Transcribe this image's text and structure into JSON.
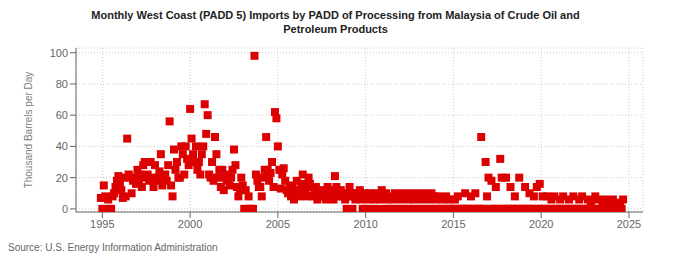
{
  "chart_data": {
    "type": "scatter",
    "title": "Monthly West Coast (PADD 5) Imports by PADD of Processing from Malaysia of Crude Oil and\nPetroleum Products",
    "ylabel": "Thousand Barrels per Day",
    "annotations": [
      "Source: U.S. Energy Information Administration"
    ],
    "color": "#dd0000",
    "marker": "square",
    "grid": true,
    "xlim": [
      1993.5,
      2025.8
    ],
    "ylim": [
      -2,
      103
    ],
    "xticks": [
      1995,
      2000,
      2005,
      2010,
      2015,
      2020,
      2025
    ],
    "yticks": [
      0,
      20,
      40,
      60,
      80,
      100
    ],
    "x": [
      1994.917,
      1995.0,
      1995.083,
      1995.167,
      1995.25,
      1995.333,
      1995.417,
      1995.5,
      1995.583,
      1995.667,
      1995.75,
      1995.833,
      1995.917,
      1996.0,
      1996.083,
      1996.167,
      1996.25,
      1996.333,
      1996.417,
      1996.5,
      1996.583,
      1996.667,
      1996.75,
      1996.833,
      1996.917,
      1997.0,
      1997.083,
      1997.167,
      1997.25,
      1997.333,
      1997.417,
      1997.5,
      1997.583,
      1997.667,
      1997.75,
      1997.833,
      1997.917,
      1998.0,
      1998.083,
      1998.167,
      1998.25,
      1998.333,
      1998.417,
      1998.5,
      1998.583,
      1998.667,
      1998.75,
      1998.833,
      1998.917,
      1999.0,
      1999.083,
      1999.167,
      1999.25,
      1999.333,
      1999.417,
      1999.5,
      1999.583,
      1999.667,
      1999.75,
      1999.833,
      1999.917,
      2000.0,
      2000.083,
      2000.167,
      2000.25,
      2000.333,
      2000.417,
      2000.5,
      2000.583,
      2000.667,
      2000.75,
      2000.833,
      2000.917,
      2001.0,
      2001.083,
      2001.167,
      2001.25,
      2001.333,
      2001.417,
      2001.5,
      2001.583,
      2001.667,
      2001.75,
      2001.833,
      2001.917,
      2002.0,
      2002.083,
      2002.167,
      2002.25,
      2002.333,
      2002.417,
      2002.5,
      2002.583,
      2002.667,
      2002.75,
      2002.833,
      2002.917,
      2003.0,
      2003.083,
      2003.167,
      2003.25,
      2003.333,
      2003.417,
      2003.5,
      2003.583,
      2003.667,
      2003.75,
      2003.833,
      2003.917,
      2004.0,
      2004.083,
      2004.167,
      2004.25,
      2004.333,
      2004.417,
      2004.5,
      2004.583,
      2004.667,
      2004.75,
      2004.833,
      2004.917,
      2005.0,
      2005.083,
      2005.167,
      2005.25,
      2005.333,
      2005.417,
      2005.5,
      2005.583,
      2005.667,
      2005.75,
      2005.833,
      2005.917,
      2006.0,
      2006.083,
      2006.167,
      2006.25,
      2006.333,
      2006.417,
      2006.5,
      2006.583,
      2006.667,
      2006.75,
      2006.833,
      2006.917,
      2007.0,
      2007.083,
      2007.167,
      2007.25,
      2007.333,
      2007.417,
      2007.5,
      2007.583,
      2007.667,
      2007.75,
      2007.833,
      2007.917,
      2008.0,
      2008.083,
      2008.167,
      2008.25,
      2008.333,
      2008.417,
      2008.5,
      2008.583,
      2008.667,
      2008.75,
      2008.833,
      2008.917,
      2009.0,
      2009.083,
      2009.167,
      2009.25,
      2009.333,
      2009.417,
      2009.5,
      2009.583,
      2009.667,
      2009.75,
      2009.833,
      2009.917,
      2010.0,
      2010.083,
      2010.167,
      2010.25,
      2010.333,
      2010.417,
      2010.5,
      2010.583,
      2010.667,
      2010.75,
      2010.833,
      2010.917,
      2011.0,
      2011.083,
      2011.167,
      2011.25,
      2011.333,
      2011.417,
      2011.5,
      2011.583,
      2011.667,
      2011.75,
      2011.833,
      2011.917,
      2012.0,
      2012.083,
      2012.167,
      2012.25,
      2012.333,
      2012.417,
      2012.5,
      2012.583,
      2012.667,
      2012.75,
      2012.833,
      2012.917,
      2013.0,
      2013.083,
      2013.167,
      2013.25,
      2013.333,
      2013.417,
      2013.5,
      2013.583,
      2013.667,
      2013.75,
      2013.833,
      2013.917,
      2014.0,
      2014.083,
      2014.167,
      2014.25,
      2014.333,
      2014.417,
      2014.5,
      2014.583,
      2014.667,
      2014.75,
      2014.833,
      2014.917,
      2015.0,
      2015.083,
      2015.167,
      2015.25,
      2015.333,
      2015.417,
      2015.5,
      2015.583,
      2015.667,
      2015.75,
      2015.833,
      2015.917,
      2016.0,
      2016.083,
      2016.167,
      2016.25,
      2016.333,
      2016.417,
      2016.5,
      2016.583,
      2016.667,
      2016.75,
      2016.833,
      2016.917,
      2017.0,
      2017.083,
      2017.167,
      2017.25,
      2017.333,
      2017.417,
      2017.5,
      2017.583,
      2017.667,
      2017.75,
      2017.833,
      2017.917,
      2018.0,
      2018.083,
      2018.167,
      2018.25,
      2018.333,
      2018.417,
      2018.5,
      2018.583,
      2018.667,
      2018.75,
      2018.833,
      2018.917,
      2019.0,
      2019.083,
      2019.167,
      2019.25,
      2019.333,
      2019.417,
      2019.5,
      2019.583,
      2019.667,
      2019.75,
      2019.833,
      2019.917,
      2020.0,
      2020.083,
      2020.167,
      2020.25,
      2020.333,
      2020.417,
      2020.5,
      2020.583,
      2020.667,
      2020.75,
      2020.833,
      2020.917,
      2021.0,
      2021.083,
      2021.167,
      2021.25,
      2021.333,
      2021.417,
      2021.5,
      2021.583,
      2021.667,
      2021.75,
      2021.833,
      2021.917,
      2022.0,
      2022.083,
      2022.167,
      2022.25,
      2022.333,
      2022.417,
      2022.5,
      2022.583,
      2022.667,
      2022.75,
      2022.833,
      2022.917,
      2023.0,
      2023.083,
      2023.167,
      2023.25,
      2023.333,
      2023.417,
      2023.5,
      2023.583,
      2023.667,
      2023.75,
      2023.833,
      2023.917,
      2024.0,
      2024.083,
      2024.167,
      2024.25,
      2024.333,
      2024.417,
      2024.5,
      2024.583,
      2024.667
    ],
    "values": [
      7,
      0,
      15,
      8,
      7,
      6,
      0,
      0,
      8,
      10,
      14,
      18,
      21,
      16,
      12,
      7,
      20,
      8,
      45,
      22,
      20,
      10,
      18,
      20,
      16,
      25,
      18,
      22,
      14,
      28,
      30,
      20,
      22,
      18,
      30,
      20,
      14,
      28,
      18,
      20,
      24,
      35,
      15,
      20,
      22,
      18,
      28,
      56,
      15,
      8,
      38,
      25,
      30,
      20,
      20,
      40,
      35,
      22,
      40,
      32,
      28,
      64,
      45,
      35,
      30,
      40,
      25,
      30,
      22,
      35,
      40,
      67,
      48,
      60,
      22,
      20,
      30,
      18,
      46,
      35,
      20,
      25,
      14,
      25,
      12,
      20,
      18,
      22,
      15,
      20,
      25,
      38,
      28,
      14,
      8,
      12,
      20,
      15,
      0,
      12,
      0,
      8,
      0,
      0,
      0,
      98,
      22,
      18,
      14,
      14,
      8,
      20,
      25,
      46,
      25,
      18,
      23,
      30,
      14,
      62,
      58,
      40,
      25,
      13,
      22,
      26,
      18,
      12,
      10,
      15,
      8,
      14,
      6,
      12,
      18,
      10,
      8,
      14,
      22,
      16,
      12,
      8,
      20,
      16,
      14,
      8,
      10,
      14,
      6,
      10,
      8,
      12,
      10,
      8,
      6,
      14,
      12,
      8,
      10,
      6,
      21,
      14,
      8,
      10,
      12,
      8,
      10,
      6,
      0,
      8,
      14,
      10,
      0,
      8,
      6,
      10,
      8,
      12,
      6,
      0,
      10,
      0,
      8,
      6,
      10,
      0,
      8,
      6,
      10,
      0,
      8,
      6,
      12,
      8,
      0,
      10,
      6,
      0,
      8,
      0,
      6,
      10,
      0,
      8,
      0,
      6,
      10,
      0,
      8,
      0,
      6,
      10,
      0,
      8,
      6,
      0,
      10,
      0,
      8,
      6,
      0,
      10,
      0,
      8,
      6,
      0,
      10,
      0,
      8,
      6,
      0,
      8,
      0,
      0,
      6,
      0,
      8,
      0,
      6,
      0,
      0,
      0,
      6,
      0,
      8,
      0,
      0,
      0,
      0,
      10,
      0,
      0,
      0,
      8,
      0,
      0,
      10,
      0,
      0,
      0,
      46,
      0,
      0,
      30,
      8,
      20,
      0,
      18,
      0,
      0,
      14,
      0,
      0,
      32,
      20,
      0,
      0,
      20,
      0,
      0,
      14,
      0,
      0,
      8,
      0,
      0,
      20,
      0,
      0,
      0,
      14,
      0,
      0,
      10,
      0,
      0,
      8,
      0,
      14,
      0,
      16,
      0,
      8,
      0,
      0,
      8,
      0,
      0,
      6,
      0,
      8,
      0,
      0,
      0,
      6,
      0,
      8,
      0,
      0,
      0,
      6,
      0,
      0,
      8,
      0,
      0,
      0,
      6,
      0,
      8,
      0,
      0,
      0,
      6,
      0,
      4,
      0,
      0,
      8,
      0,
      6,
      0,
      0,
      4,
      0,
      6,
      0,
      0,
      2,
      0,
      6,
      0,
      4,
      0,
      0,
      2,
      0,
      6
    ]
  }
}
